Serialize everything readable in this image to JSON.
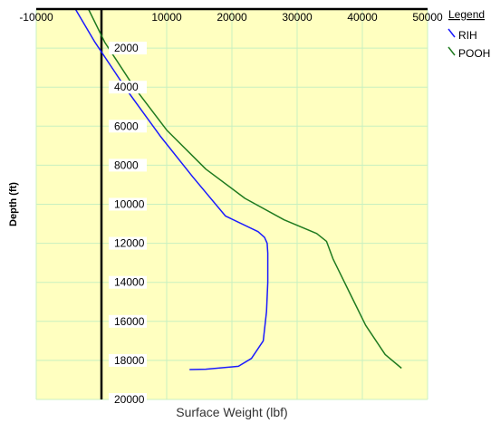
{
  "chart_data": {
    "type": "line",
    "xlabel": "Surface Weight (lbf)",
    "ylabel": "Depth (ft)",
    "xlim": [
      -10000,
      50000
    ],
    "ylim": [
      0,
      20000
    ],
    "y_inverted": true,
    "x_ticks": [
      -10000,
      10000,
      20000,
      30000,
      40000,
      50000
    ],
    "y_ticks": [
      2000,
      4000,
      6000,
      8000,
      10000,
      12000,
      14000,
      16000,
      18000,
      20000
    ],
    "grid": true,
    "plot_background": "#ffffc0",
    "grid_color": "#c8f0c0",
    "legend": {
      "title": "Legend",
      "placement": "right"
    },
    "series": [
      {
        "name": "RIH",
        "color": "#1a1aff",
        "points": [
          [
            -4000,
            0
          ],
          [
            -1000,
            1700
          ],
          [
            4000,
            4200
          ],
          [
            9000,
            6500
          ],
          [
            14000,
            8600
          ],
          [
            19000,
            10600
          ],
          [
            24000,
            11400
          ],
          [
            25000,
            11700
          ],
          [
            25400,
            12000
          ],
          [
            25500,
            12500
          ],
          [
            25500,
            14000
          ],
          [
            25300,
            15500
          ],
          [
            24800,
            17000
          ],
          [
            23000,
            17900
          ],
          [
            21000,
            18300
          ],
          [
            16000,
            18450
          ],
          [
            13500,
            18470
          ]
        ]
      },
      {
        "name": "POOH",
        "color": "#1f7a1f",
        "points": [
          [
            -2000,
            0
          ],
          [
            500,
            1700
          ],
          [
            5000,
            4000
          ],
          [
            10000,
            6200
          ],
          [
            16000,
            8200
          ],
          [
            22000,
            9700
          ],
          [
            28000,
            10800
          ],
          [
            33000,
            11500
          ],
          [
            34500,
            11900
          ],
          [
            35500,
            12800
          ],
          [
            38000,
            14500
          ],
          [
            40500,
            16200
          ],
          [
            43500,
            17700
          ],
          [
            46000,
            18400
          ]
        ]
      }
    ]
  }
}
